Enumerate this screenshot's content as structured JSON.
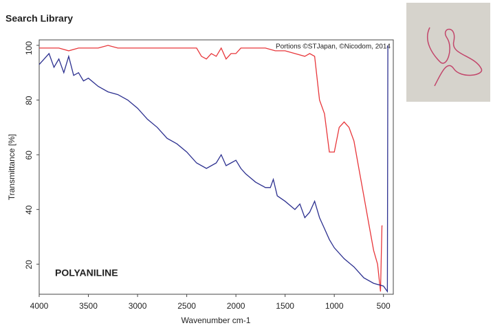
{
  "chart_data": {
    "type": "line",
    "title": "Search Library",
    "xlabel": "Wavenumber cm-1",
    "ylabel": "Transmittance [%]",
    "annotations": [
      "Portions ©STJapan, ©Nicodom, 2014",
      "POLYANILINE"
    ],
    "xlim": [
      4000,
      400
    ],
    "xticks": [
      4000,
      3500,
      3000,
      2500,
      2000,
      1500,
      1000,
      500
    ],
    "ylim": [
      9,
      102
    ],
    "yticks": [
      20,
      40,
      60,
      80,
      100
    ],
    "grid": false,
    "series": [
      {
        "color": "#e8363a",
        "x": [
          4000,
          3900,
          3800,
          3700,
          3600,
          3500,
          3400,
          3300,
          3200,
          3100,
          3000,
          2900,
          2800,
          2700,
          2600,
          2500,
          2400,
          2350,
          2300,
          2250,
          2200,
          2150,
          2100,
          2050,
          2000,
          1950,
          1900,
          1800,
          1700,
          1600,
          1500,
          1400,
          1300,
          1250,
          1200,
          1150,
          1100,
          1050,
          1000,
          950,
          900,
          850,
          800,
          750,
          700,
          650,
          600,
          560,
          530,
          515,
          510
        ],
        "values": [
          99,
          99,
          99,
          98,
          99,
          99,
          99,
          100,
          99,
          99,
          99,
          99,
          99,
          99,
          99,
          99,
          99,
          96,
          95,
          97,
          96,
          99,
          95,
          97,
          97,
          99,
          99,
          99,
          99,
          98,
          98,
          97,
          96,
          97,
          96,
          80,
          75,
          61,
          61,
          70,
          72,
          70,
          65,
          55,
          45,
          35,
          25,
          20,
          10,
          34,
          34
        ]
      },
      {
        "color": "#2b2f8f",
        "x": [
          4000,
          3950,
          3900,
          3850,
          3800,
          3750,
          3700,
          3650,
          3600,
          3550,
          3500,
          3400,
          3300,
          3200,
          3100,
          3000,
          2900,
          2800,
          2700,
          2600,
          2500,
          2400,
          2300,
          2200,
          2150,
          2100,
          2050,
          2000,
          1950,
          1900,
          1800,
          1700,
          1650,
          1620,
          1580,
          1500,
          1400,
          1350,
          1300,
          1250,
          1200,
          1150,
          1100,
          1050,
          1000,
          900,
          800,
          700,
          600,
          500,
          460,
          455
        ],
        "values": [
          93,
          95,
          97,
          92,
          95,
          90,
          96,
          89,
          90,
          87,
          88,
          85,
          83,
          82,
          80,
          77,
          73,
          70,
          66,
          64,
          61,
          57,
          55,
          57,
          60,
          56,
          57,
          58,
          55,
          53,
          50,
          48,
          48,
          51,
          45,
          43,
          40,
          42,
          37,
          39,
          43,
          37,
          33,
          29,
          26,
          22,
          19,
          15,
          13,
          12,
          10,
          100
        ]
      }
    ]
  }
}
